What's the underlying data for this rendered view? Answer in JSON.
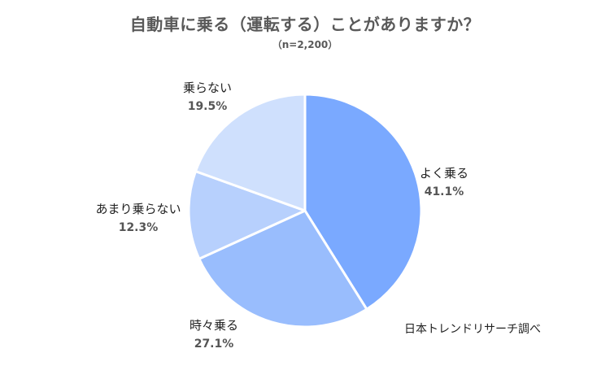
{
  "title": "自動車に乗る（運転する）ことがありますか？",
  "subtitle": "（n=2,200）",
  "source": "日本トレンドリサーチ調べ",
  "chart_data": {
    "type": "pie",
    "start_angle_deg": 90,
    "direction": "clockwise",
    "slices": [
      {
        "label": "よく乗る",
        "value": 41.1,
        "value_label": "41.1%",
        "color": "#7aa9ff"
      },
      {
        "label": "時々乗る",
        "value": 27.1,
        "value_label": "27.1%",
        "color": "#99bdfd"
      },
      {
        "label": "あまり乗らない",
        "value": 12.3,
        "value_label": "12.3%",
        "color": "#b7d0fd"
      },
      {
        "label": "乗らない",
        "value": 19.5,
        "value_label": "19.5%",
        "color": "#cfe0fd"
      }
    ]
  }
}
